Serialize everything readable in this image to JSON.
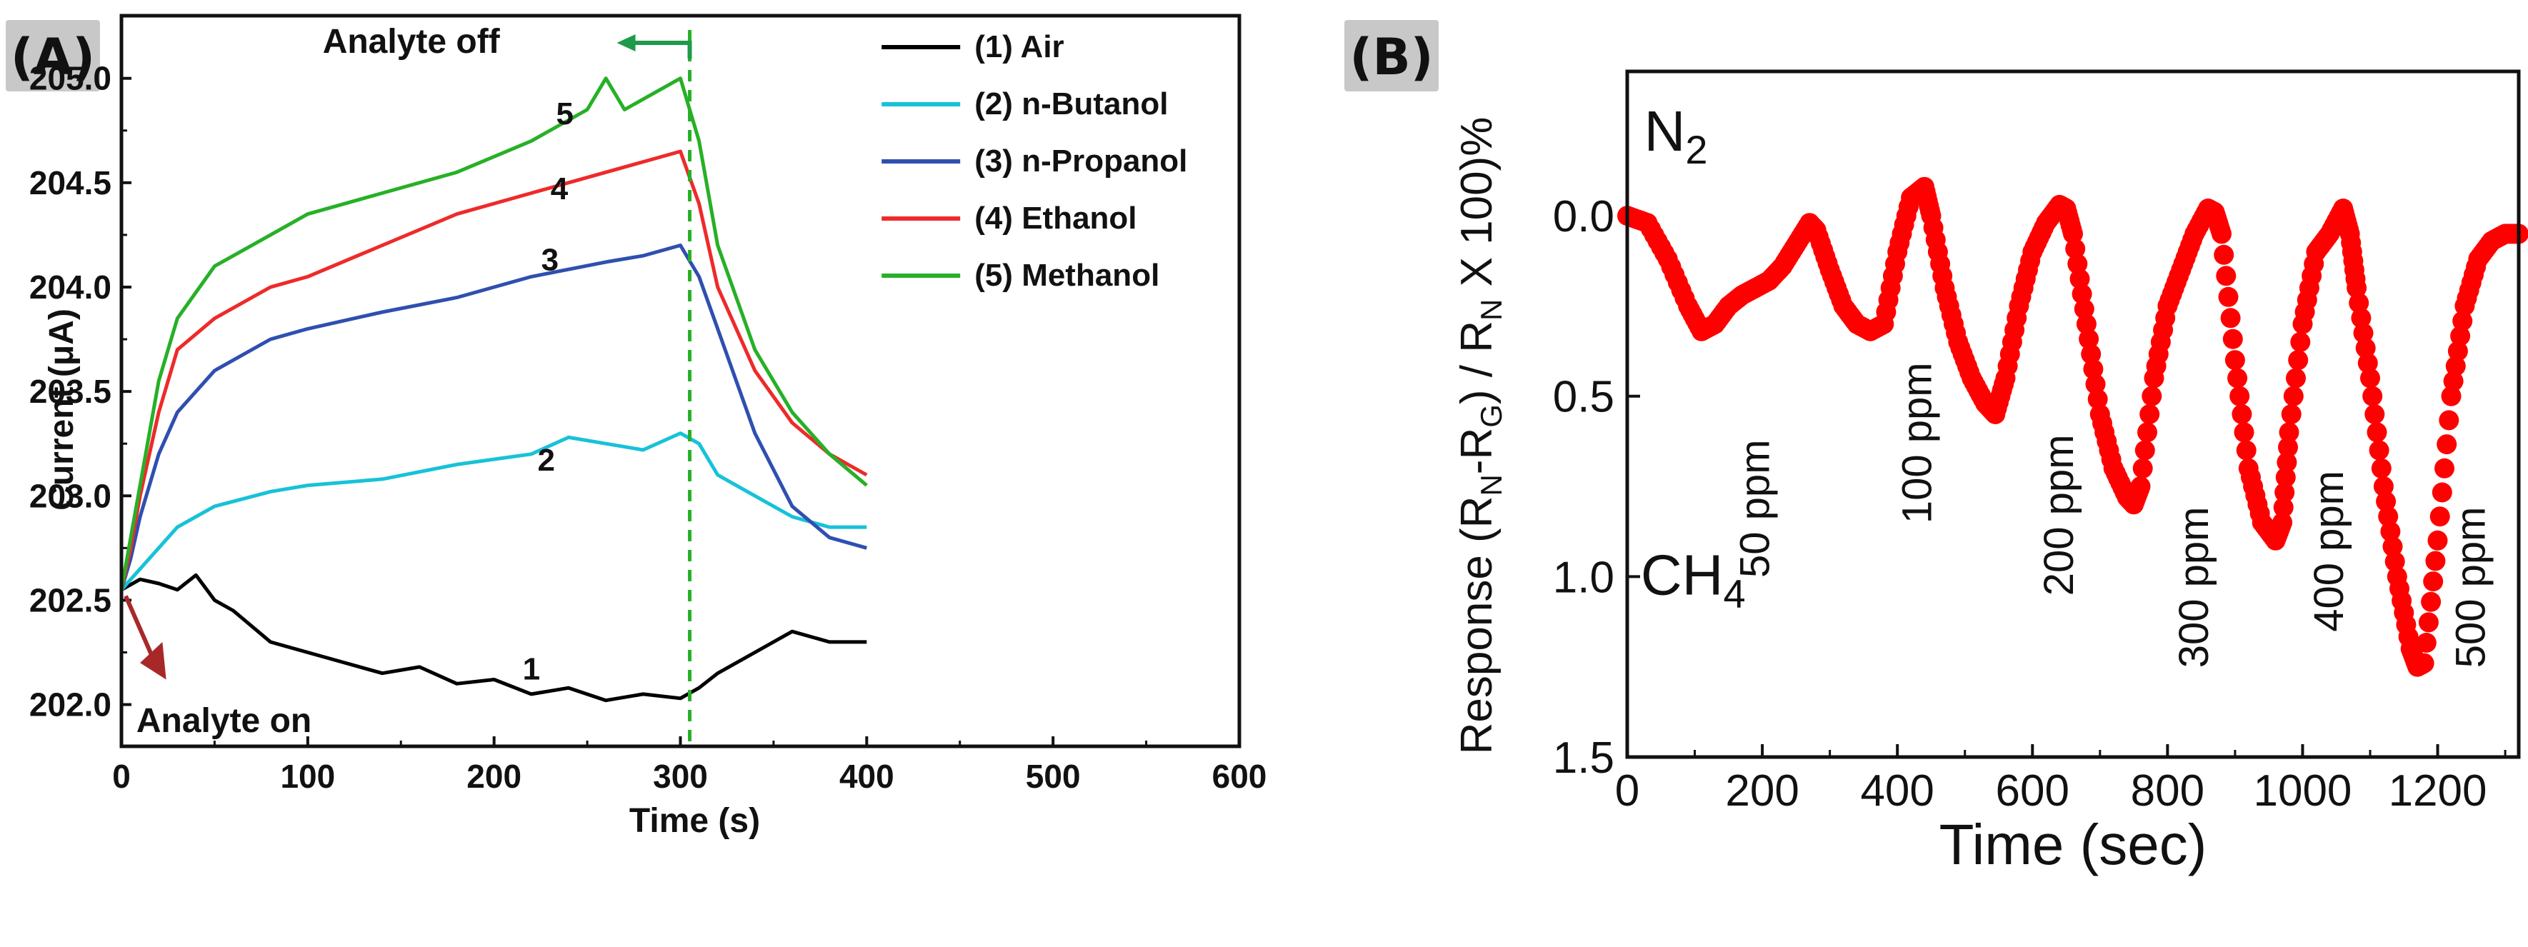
{
  "chart_data": [
    {
      "type": "line",
      "panel_label": "(A)",
      "xlabel": "Time (s)",
      "ylabel": "Current (μA)",
      "xlim": [
        0,
        600
      ],
      "ylim": [
        201.8,
        205.3
      ],
      "xticks": [
        "0",
        "100",
        "200",
        "300",
        "400",
        "500",
        "600"
      ],
      "yticks": [
        "202.0",
        "202.5",
        "203.0",
        "203.5",
        "204.0",
        "204.5",
        "205.0"
      ],
      "legend_position": "top-right",
      "series": [
        {
          "name": "(1) Air",
          "label": "1",
          "color": "#000000",
          "x": [
            0,
            10,
            20,
            30,
            40,
            50,
            60,
            80,
            100,
            120,
            140,
            160,
            180,
            200,
            220,
            240,
            260,
            280,
            300,
            310,
            320,
            340,
            360,
            380,
            400
          ],
          "y": [
            202.55,
            202.6,
            202.58,
            202.55,
            202.62,
            202.5,
            202.45,
            202.3,
            202.25,
            202.2,
            202.15,
            202.18,
            202.1,
            202.12,
            202.05,
            202.08,
            202.02,
            202.05,
            202.03,
            202.08,
            202.15,
            202.25,
            202.35,
            202.3,
            202.3
          ]
        },
        {
          "name": "(2) n-Butanol",
          "label": "2",
          "color": "#17c2d8",
          "x": [
            0,
            5,
            10,
            20,
            30,
            50,
            80,
            100,
            140,
            180,
            220,
            240,
            260,
            280,
            300,
            310,
            320,
            340,
            360,
            380,
            400
          ],
          "y": [
            202.55,
            202.6,
            202.65,
            202.75,
            202.85,
            202.95,
            203.02,
            203.05,
            203.08,
            203.15,
            203.2,
            203.28,
            203.25,
            203.22,
            203.3,
            203.25,
            203.1,
            203.0,
            202.9,
            202.85,
            202.85
          ]
        },
        {
          "name": "(3) n-Propanol",
          "label": "3",
          "color": "#2f4fb0",
          "x": [
            0,
            5,
            10,
            20,
            30,
            50,
            80,
            100,
            140,
            180,
            220,
            260,
            280,
            300,
            310,
            320,
            340,
            360,
            380,
            400
          ],
          "y": [
            202.55,
            202.7,
            202.9,
            203.2,
            203.4,
            203.6,
            203.75,
            203.8,
            203.88,
            203.95,
            204.05,
            204.12,
            204.15,
            204.2,
            204.05,
            203.8,
            203.3,
            202.95,
            202.8,
            202.75
          ]
        },
        {
          "name": "(4) Ethanol",
          "label": "4",
          "color": "#ee2a2a",
          "x": [
            0,
            5,
            10,
            20,
            30,
            50,
            80,
            100,
            140,
            180,
            220,
            260,
            280,
            300,
            310,
            320,
            340,
            360,
            380,
            400
          ],
          "y": [
            202.55,
            202.75,
            203.0,
            203.4,
            203.7,
            203.85,
            204.0,
            204.05,
            204.2,
            204.35,
            204.45,
            204.55,
            204.6,
            204.65,
            204.4,
            204.0,
            203.6,
            203.35,
            203.2,
            203.1
          ]
        },
        {
          "name": "(5) Methanol",
          "label": "5",
          "color": "#27b027",
          "x": [
            0,
            5,
            10,
            20,
            30,
            50,
            80,
            100,
            140,
            180,
            220,
            250,
            260,
            270,
            280,
            300,
            310,
            320,
            340,
            360,
            380,
            400
          ],
          "y": [
            202.55,
            202.8,
            203.05,
            203.55,
            203.85,
            204.1,
            204.25,
            204.35,
            204.45,
            204.55,
            204.7,
            204.85,
            205.0,
            204.85,
            204.9,
            205.0,
            204.7,
            204.2,
            203.7,
            203.4,
            203.2,
            203.05
          ]
        }
      ],
      "annotations": {
        "analyte_off": "Analyte off",
        "analyte_on": "Analyte on",
        "vline_x": 305
      },
      "colors": {
        "analyte_off": "#1e9a4a",
        "analyte_on": "#a8282a",
        "vline": "#27b027"
      }
    },
    {
      "type": "scatter",
      "panel_label": "(B)",
      "xlabel": "Time (sec)",
      "ylabel_parts": {
        "p1": "Response (R",
        "s1": "N",
        "p2": "-R",
        "s2": "G",
        "p3": ") / R",
        "s3": "N",
        "p4": " X 100)%"
      },
      "xlim": [
        0,
        1320
      ],
      "ylim": [
        1.5,
        -0.4
      ],
      "y_inverted": true,
      "xticks": [
        "0",
        "200",
        "400",
        "600",
        "800",
        "1000",
        "1200"
      ],
      "yticks": [
        "0.0",
        "0.5",
        "1.0",
        "1.5"
      ],
      "gas_labels": {
        "n2": "N",
        "n2_sub": "2",
        "ch4": "CH",
        "ch4_sub": "4"
      },
      "ppm_labels": [
        "50 ppm",
        "100 ppm",
        "200 ppm",
        "300 ppm",
        "400 ppm",
        "500 ppm"
      ],
      "color": "#ff0000",
      "x": [
        0,
        30,
        60,
        90,
        110,
        130,
        150,
        170,
        190,
        210,
        230,
        250,
        270,
        280,
        300,
        320,
        340,
        360,
        380,
        400,
        420,
        440,
        450,
        470,
        490,
        510,
        530,
        545,
        560,
        580,
        600,
        620,
        640,
        650,
        660,
        680,
        700,
        720,
        740,
        750,
        760,
        780,
        800,
        820,
        840,
        860,
        870,
        880,
        900,
        920,
        940,
        960,
        970,
        980,
        1000,
        1020,
        1040,
        1060,
        1070,
        1080,
        1100,
        1120,
        1140,
        1160,
        1170,
        1180,
        1200,
        1220,
        1240,
        1260,
        1280,
        1300,
        1320
      ],
      "y": [
        0.0,
        0.02,
        0.12,
        0.25,
        0.32,
        0.3,
        0.25,
        0.22,
        0.2,
        0.18,
        0.14,
        0.08,
        0.02,
        0.04,
        0.15,
        0.25,
        0.3,
        0.32,
        0.3,
        0.1,
        -0.05,
        -0.08,
        0.0,
        0.2,
        0.35,
        0.45,
        0.52,
        0.55,
        0.45,
        0.25,
        0.1,
        0.02,
        -0.03,
        -0.02,
        0.05,
        0.3,
        0.55,
        0.7,
        0.78,
        0.8,
        0.75,
        0.45,
        0.25,
        0.15,
        0.05,
        -0.02,
        -0.01,
        0.05,
        0.4,
        0.7,
        0.85,
        0.9,
        0.85,
        0.6,
        0.3,
        0.1,
        0.05,
        -0.02,
        0.05,
        0.2,
        0.45,
        0.75,
        1.0,
        1.2,
        1.25,
        1.24,
        0.9,
        0.5,
        0.25,
        0.12,
        0.07,
        0.05,
        0.05
      ]
    }
  ]
}
